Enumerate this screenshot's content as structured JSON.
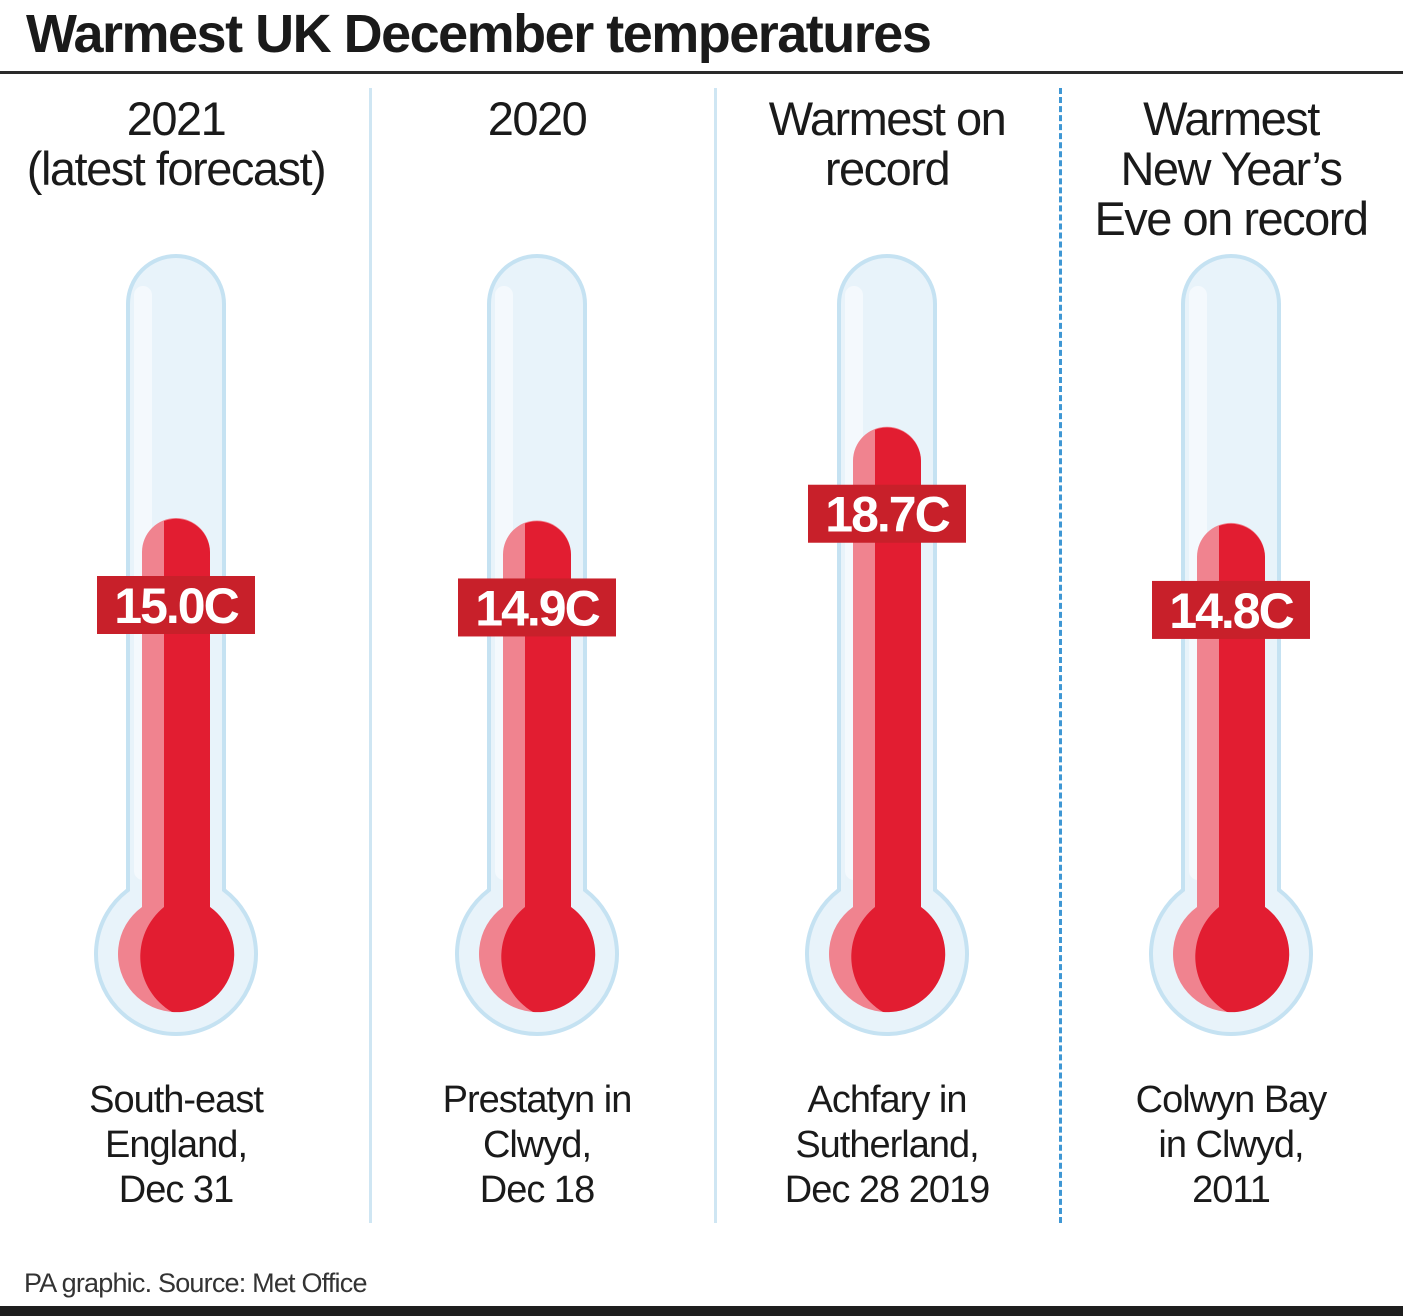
{
  "title": "Warmest UK December temperatures",
  "source": "PA graphic. Source: Met Office",
  "colors": {
    "mercury": "#e21d31",
    "mercury_highlight": "#f0838f",
    "label_box": "#c8202a",
    "glass_fill": "#e8f3fa",
    "glass_stroke": "#c5e2f2",
    "divider": "#cfe6f3",
    "divider_dashed": "#3f97d4"
  },
  "chart_data": {
    "type": "bar",
    "style": "thermometer",
    "title": "Warmest UK December temperatures",
    "unit": "C",
    "categories": [
      "2021\n(latest forecast)",
      "2020",
      "Warmest on\nrecord",
      "Warmest\nNew Year’s\nEve on record"
    ],
    "values": [
      15.0,
      14.9,
      18.7,
      14.8
    ],
    "value_labels": [
      "15.0C",
      "14.9C",
      "18.7C",
      "14.8C"
    ],
    "locations": [
      "South-east\nEngland,\nDec 31",
      "Prestatyn in\nClwyd,\nDec 18",
      "Achfary in\nSutherland,\nDec 28 2019",
      "Colwyn Bay\nin Clwyd,\n2011"
    ],
    "scale_max": 24
  }
}
